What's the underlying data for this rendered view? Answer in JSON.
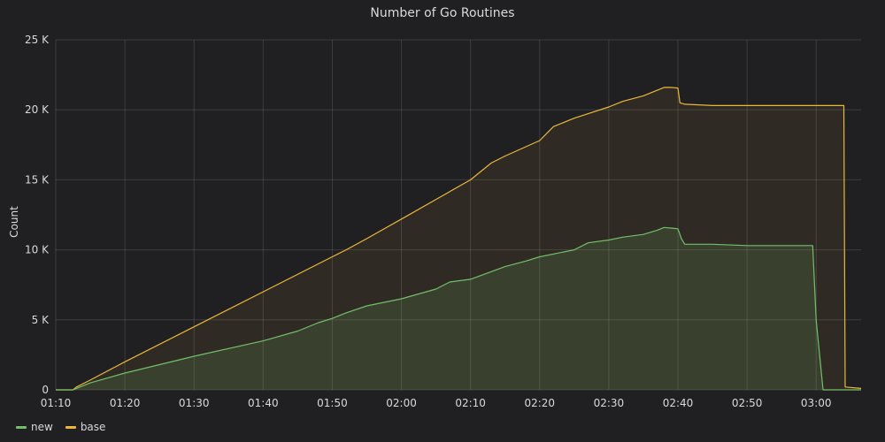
{
  "chart_data": {
    "type": "area",
    "title": "Number of Go Routines",
    "ylabel": "Count",
    "xlabel": "",
    "y_ticks": [
      "0",
      "5 K",
      "10 K",
      "15 K",
      "20 K",
      "25 K"
    ],
    "y_tick_values": [
      0,
      5000,
      10000,
      15000,
      20000,
      25000
    ],
    "ylim": [
      0,
      25000
    ],
    "x_ticks": [
      "01:10",
      "01:20",
      "01:30",
      "01:40",
      "01:50",
      "02:00",
      "02:10",
      "02:20",
      "02:30",
      "02:40",
      "02:50",
      "03:00"
    ],
    "x_tick_minutes": [
      70,
      80,
      90,
      100,
      110,
      120,
      130,
      140,
      150,
      160,
      170,
      180
    ],
    "xlim_minutes": [
      70,
      186.5
    ],
    "grid": true,
    "legend_position": "bottom-left",
    "series": [
      {
        "name": "new",
        "color": "#73bf69",
        "fill": "rgba(115,191,105,0.15)",
        "x": [
          70,
          72.5,
          73,
          75,
          80,
          90,
          100,
          105,
          108,
          110,
          112,
          115,
          120,
          125,
          127,
          130,
          135,
          138,
          140,
          145,
          147,
          150,
          152,
          155,
          157,
          158,
          159,
          160,
          160.5,
          161,
          165,
          170,
          175,
          179.5,
          180,
          181,
          186.5
        ],
        "y": [
          0,
          0,
          100,
          500,
          1200,
          2400,
          3500,
          4200,
          4800,
          5100,
          5500,
          6000,
          6500,
          7200,
          7700,
          7900,
          8800,
          9200,
          9500,
          10000,
          10500,
          10700,
          10900,
          11100,
          11400,
          11600,
          11550,
          11500,
          10800,
          10400,
          10400,
          10300,
          10300,
          10300,
          5000,
          0,
          0
        ]
      },
      {
        "name": "base",
        "color": "#eab839",
        "fill": "rgba(234,184,57,0.08)",
        "x": [
          70,
          72.5,
          73,
          75,
          80,
          90,
          100,
          110,
          112,
          115,
          120,
          125,
          130,
          133,
          135,
          140,
          142,
          145,
          150,
          152,
          155,
          158,
          159,
          160,
          160.3,
          161,
          165,
          170,
          175,
          180,
          184,
          184.2,
          186.5
        ],
        "y": [
          0,
          0,
          200,
          700,
          2000,
          4500,
          7000,
          9500,
          10000,
          10800,
          12200,
          13600,
          15000,
          16200,
          16700,
          17800,
          18800,
          19400,
          20200,
          20600,
          21000,
          21600,
          21600,
          21550,
          20500,
          20400,
          20300,
          20300,
          20300,
          20300,
          20300,
          200,
          100
        ]
      }
    ]
  }
}
